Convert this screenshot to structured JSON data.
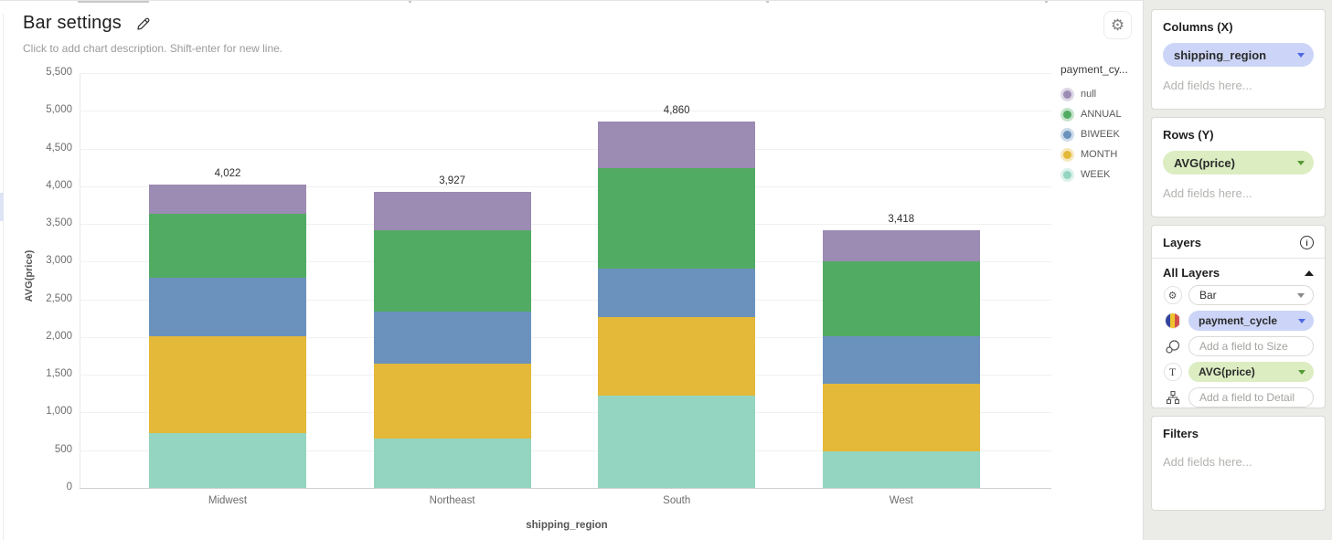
{
  "header": {
    "title": "Bar settings",
    "description_placeholder": "Click to add chart description. Shift-enter for new line.",
    "gear_glyph": "⚙"
  },
  "chart_data": {
    "type": "bar",
    "stacked": true,
    "categories": [
      "Midwest",
      "Northeast",
      "South",
      "West"
    ],
    "series": [
      {
        "name": "WEEK",
        "color": "#94d5c1",
        "values": [
          731,
          651,
          1228,
          488
        ]
      },
      {
        "name": "MONTH",
        "color": "#e4b838",
        "values": [
          1285,
          1001,
          1038,
          890
        ]
      },
      {
        "name": "BIWEEK",
        "color": "#6b92bd",
        "values": [
          775,
          687,
          646,
          638
        ]
      },
      {
        "name": "ANNUAL",
        "color": "#52ab63",
        "values": [
          849,
          1079,
          1334,
          986
        ]
      },
      {
        "name": "null",
        "color": "#9c8bb3",
        "values": [
          382,
          509,
          614,
          416
        ]
      }
    ],
    "totals_text": [
      "4,022",
      "3,927",
      "4,860",
      "3,418"
    ],
    "title": "Bar settings",
    "xlabel": "shipping_region",
    "ylabel": "AVG(price)",
    "ylim": [
      0,
      5500
    ],
    "ytick_step": 500,
    "grid": true,
    "legend": {
      "title": "payment_cy...",
      "position": "right",
      "items": [
        "null",
        "ANNUAL",
        "BIWEEK",
        "MONTH",
        "WEEK"
      ]
    }
  },
  "sidebar": {
    "columns": {
      "title": "Columns (X)",
      "chip": "shipping_region",
      "placeholder": "Add fields here..."
    },
    "rows": {
      "title": "Rows (Y)",
      "chip": "AVG(price)",
      "placeholder": "Add fields here..."
    },
    "layers": {
      "title": "Layers",
      "all_layers": "All Layers",
      "layer_type": "Bar",
      "color_chip": "payment_cycle",
      "size_placeholder": "Add a field to Size",
      "text_chip": "AVG(price)",
      "detail_placeholder": "Add a field to Detail",
      "info_glyph": "i"
    },
    "filters": {
      "title": "Filters",
      "placeholder": "Add fields here..."
    }
  },
  "colors": {
    "chip_lavender": "#ccd5f7",
    "chip_green": "#dcedc2",
    "caret_blue": "#4c68e0",
    "caret_green": "#549b33",
    "sidebar_bg": "#ebebe8",
    "swatch_stripes": [
      "#32449c",
      "#efc32f",
      "#d2504b"
    ]
  }
}
